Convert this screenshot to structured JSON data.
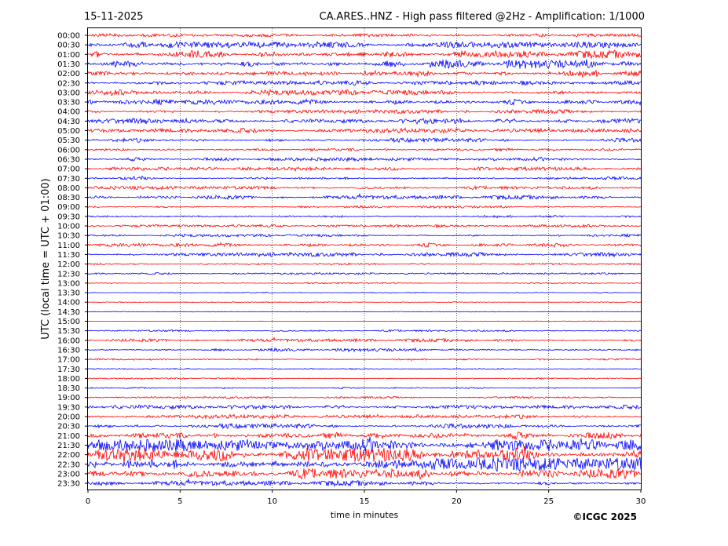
{
  "header": {
    "date": "15-11-2025",
    "title": "CA.ARES..HNZ - High pass filtered @2Hz - Amplification: 1/1000"
  },
  "footer": {
    "copyright": "©ICGC 2025"
  },
  "chart_data": {
    "type": "line",
    "xlabel": "time in minutes",
    "ylabel": "UTC (local time = UTC + 01:00)",
    "xlim": [
      0,
      30
    ],
    "x_ticks": [
      0,
      5,
      10,
      15,
      20,
      25,
      30
    ],
    "grid": "vertical dotted lines at 5-minute ticks",
    "colors": {
      "odd_trace": "#ff0000",
      "even_trace": "#0000ff",
      "grid": "#000000"
    },
    "y_labels": [
      "00:00",
      "00:30",
      "01:00",
      "01:30",
      "02:00",
      "02:30",
      "03:00",
      "03:30",
      "04:00",
      "04:30",
      "05:00",
      "05:30",
      "06:00",
      "06:30",
      "07:00",
      "07:30",
      "08:00",
      "08:30",
      "09:00",
      "09:30",
      "10:00",
      "10:30",
      "11:00",
      "11:30",
      "12:00",
      "12:30",
      "13:00",
      "13:30",
      "14:00",
      "14:30",
      "15:00",
      "15:30",
      "16:00",
      "16:30",
      "17:00",
      "17:30",
      "18:00",
      "18:30",
      "19:00",
      "19:30",
      "20:00",
      "20:30",
      "21:00",
      "21:30",
      "22:00",
      "22:30",
      "23:00",
      "23:30"
    ],
    "trace_colors": [
      "red",
      "blue",
      "red",
      "blue",
      "red",
      "blue",
      "red",
      "blue",
      "red",
      "blue",
      "red",
      "blue",
      "red",
      "blue",
      "red",
      "blue",
      "red",
      "blue",
      "red",
      "blue",
      "red",
      "blue",
      "red",
      "blue",
      "red",
      "blue",
      "red",
      "blue",
      "red",
      "blue",
      "red",
      "blue",
      "red",
      "blue",
      "red",
      "blue",
      "red",
      "blue",
      "red",
      "blue",
      "red",
      "blue",
      "red",
      "blue",
      "red",
      "blue",
      "red",
      "blue"
    ],
    "trace_amplitude_relative": [
      0.25,
      0.45,
      0.6,
      0.7,
      0.55,
      0.35,
      0.4,
      0.4,
      0.3,
      0.4,
      0.35,
      0.3,
      0.25,
      0.25,
      0.25,
      0.25,
      0.25,
      0.3,
      0.2,
      0.2,
      0.2,
      0.2,
      0.3,
      0.3,
      0.15,
      0.15,
      0.1,
      0.08,
      0.06,
      0.05,
      0.05,
      0.15,
      0.25,
      0.25,
      0.15,
      0.08,
      0.1,
      0.12,
      0.15,
      0.3,
      0.3,
      0.35,
      0.55,
      0.9,
      1.0,
      1.0,
      0.8,
      0.4
    ]
  }
}
